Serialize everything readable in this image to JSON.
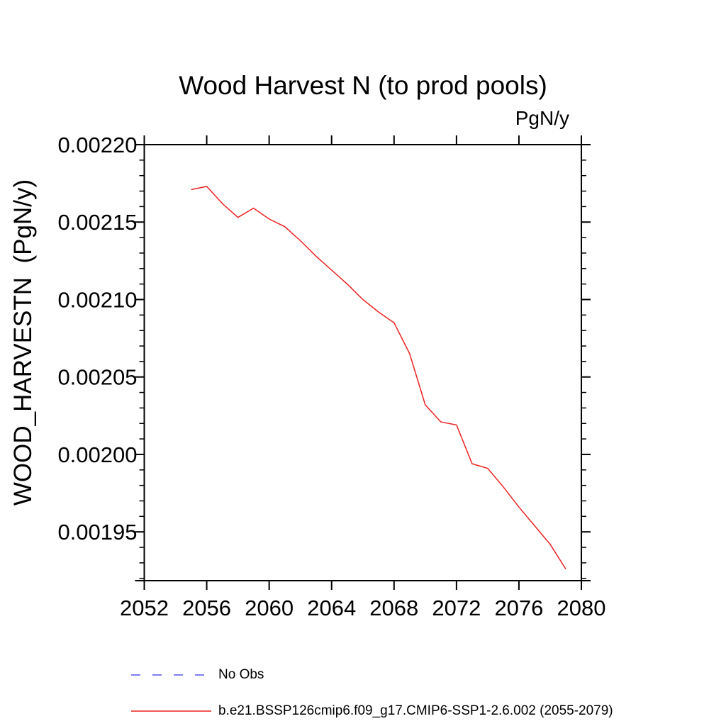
{
  "page": {
    "title": "Wood Harvest N (to prod pools)",
    "unit_label": "PgN/y",
    "y_axis_title": "WOOD_HARVESTN  (PgN/y)"
  },
  "legend": {
    "items": [
      {
        "label": "No Obs",
        "color": "#8080f0",
        "dasharray": "13 17",
        "stroke_width": 2
      },
      {
        "label": "b.e21.BSSP126cmip6.f09_g17.CMIP6-SSP1-2.6.002 (2055-2079)",
        "color": "#ee2020",
        "dasharray": "none",
        "stroke_width": 1.5
      }
    ]
  },
  "chart_data": {
    "type": "line",
    "title": "Wood Harvest N (to prod pools)",
    "xlabel": "",
    "ylabel": "WOOD_HARVESTN (PgN/y)",
    "unit": "PgN/y",
    "grid": false,
    "legend_position": "below-left",
    "xlim": [
      2052,
      2080
    ],
    "ylim": [
      0.0019185,
      0.0022
    ],
    "xticks": [
      2052,
      2056,
      2060,
      2064,
      2068,
      2072,
      2076,
      2080
    ],
    "yticks": [
      0.00195,
      0.002,
      0.00205,
      0.0021,
      0.00215,
      0.0022
    ],
    "ytick_labels": [
      "0.00195",
      "0.00200",
      "0.00205",
      "0.00210",
      "0.00215",
      "0.00220"
    ],
    "y_minor_step": 1e-05,
    "axis_color": "#000000",
    "series": [
      {
        "name": "b.e21.BSSP126cmip6.f09_g17.CMIP6-SSP1-2.6.002 (2055-2079)",
        "color": "#ee2020",
        "x": [
          2055,
          2056,
          2057,
          2058,
          2059,
          2060,
          2061,
          2062,
          2063,
          2064,
          2065,
          2066,
          2067,
          2068,
          2069,
          2070,
          2071,
          2072,
          2073,
          2074,
          2075,
          2076,
          2077,
          2078,
          2079
        ],
        "values": [
          0.002171,
          0.002173,
          0.002162,
          0.002153,
          0.002159,
          0.002152,
          0.002147,
          0.002138,
          0.002128,
          0.002119,
          0.00211,
          0.0021,
          0.002092,
          0.002085,
          0.002065,
          0.002032,
          0.002021,
          0.002019,
          0.001994,
          0.001991,
          0.001979,
          0.001966,
          0.001954,
          0.001942,
          0.001926
        ]
      }
    ]
  }
}
